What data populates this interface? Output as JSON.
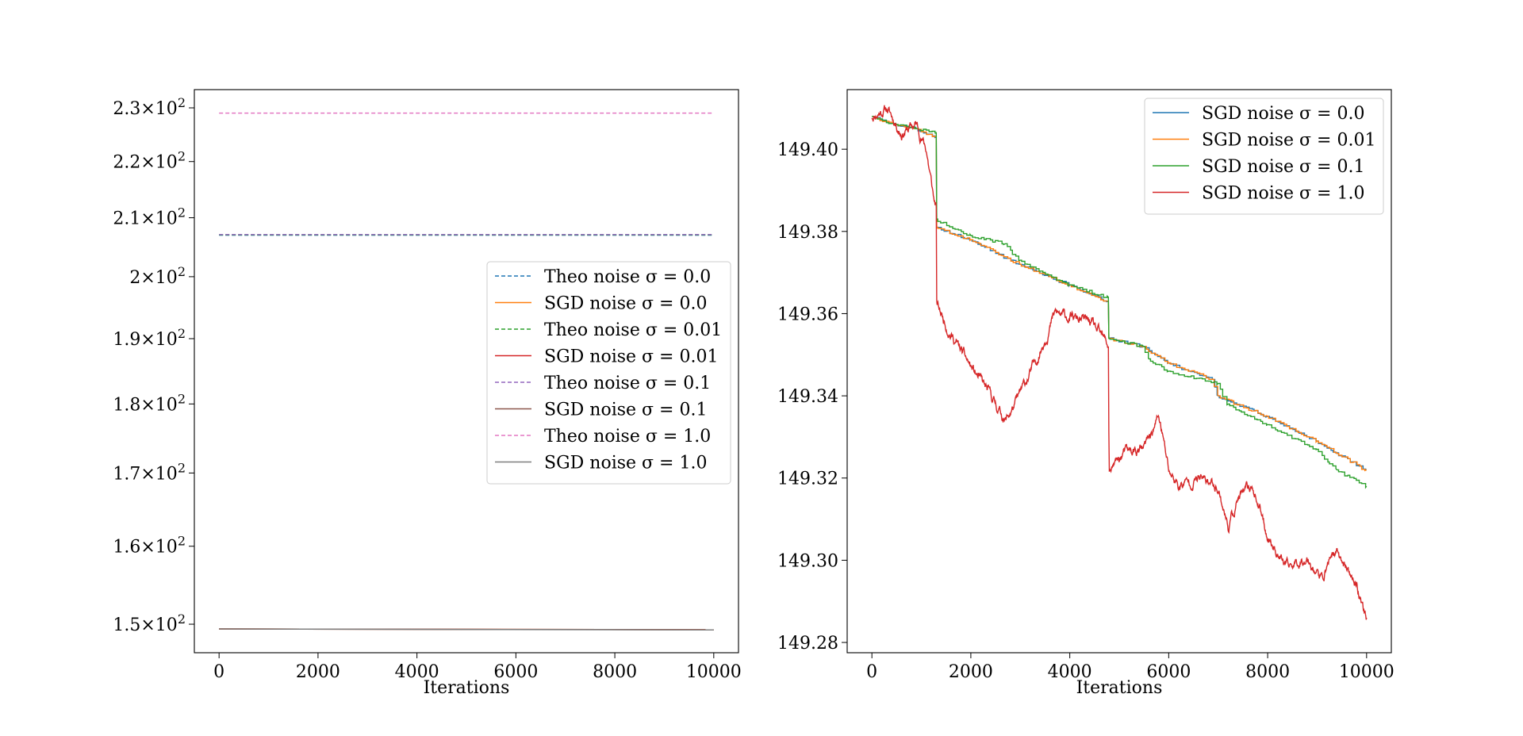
{
  "colors": {
    "c0": "#1f77b4",
    "c1": "#ff7f0e",
    "c2": "#2ca02c",
    "c3": "#d62728",
    "c4": "#9467bd",
    "c5": "#8c564b",
    "c6": "#e377c2",
    "c7": "#7f7f7f"
  },
  "chart_data": [
    {
      "type": "line",
      "xlabel": "Iterations",
      "ylabel": "",
      "xlim": [
        -500,
        10500
      ],
      "ylim": [
        146.5,
        233.5
      ],
      "yscale": "log",
      "xticks": [
        0,
        2000,
        4000,
        6000,
        8000,
        10000
      ],
      "xtick_labels": [
        "0",
        "2000",
        "4000",
        "6000",
        "8000",
        "10000"
      ],
      "yticks": [
        150,
        160,
        170,
        180,
        190,
        200,
        210,
        220,
        230
      ],
      "ytick_labels": [
        {
          "mant": "1.5",
          "exp": "2"
        },
        {
          "mant": "1.6",
          "exp": "2"
        },
        {
          "mant": "1.7",
          "exp": "2"
        },
        {
          "mant": "1.8",
          "exp": "2"
        },
        {
          "mant": "1.9",
          "exp": "2"
        },
        {
          "mant": "2",
          "exp": "2"
        },
        {
          "mant": "2.1",
          "exp": "2"
        },
        {
          "mant": "2.2",
          "exp": "2"
        },
        {
          "mant": "2.3",
          "exp": "2"
        }
      ],
      "legend": "center-right",
      "grid": false,
      "series": [
        {
          "name": "Theo noise σ = 0.0",
          "style": "dashed",
          "color": "c0",
          "x": [
            0,
            10000
          ],
          "y": [
            207.0,
            207.0
          ]
        },
        {
          "name": "SGD noise σ = 0.0",
          "style": "solid",
          "color": "c1",
          "x": [
            0,
            10000
          ],
          "y": [
            149.41,
            149.32
          ]
        },
        {
          "name": "Theo noise σ = 0.01",
          "style": "dashed",
          "color": "c2",
          "x": [
            0,
            10000
          ],
          "y": [
            207.05,
            207.05
          ]
        },
        {
          "name": "SGD noise σ = 0.01",
          "style": "solid",
          "color": "c3",
          "x": [
            0,
            10000
          ],
          "y": [
            149.41,
            149.32
          ]
        },
        {
          "name": "Theo noise σ = 0.1",
          "style": "dashed",
          "color": "c4",
          "x": [
            0,
            10000
          ],
          "y": [
            207.1,
            207.1
          ]
        },
        {
          "name": "SGD noise σ = 0.1",
          "style": "solid",
          "color": "c5",
          "x": [
            0,
            10000
          ],
          "y": [
            149.41,
            149.32
          ]
        },
        {
          "name": "Theo noise σ = 1.0",
          "style": "dashed",
          "color": "c6",
          "x": [
            0,
            10000
          ],
          "y": [
            229.0,
            229.0
          ]
        },
        {
          "name": "SGD noise σ = 1.0",
          "style": "solid",
          "color": "c7",
          "x": [
            0,
            10000
          ],
          "y": [
            149.41,
            149.29
          ]
        }
      ]
    },
    {
      "type": "line",
      "xlabel": "Iterations",
      "ylabel": "",
      "xlim": [
        -500,
        10500
      ],
      "ylim": [
        149.2775,
        149.4145
      ],
      "xticks": [
        0,
        2000,
        4000,
        6000,
        8000,
        10000
      ],
      "xtick_labels": [
        "0",
        "2000",
        "4000",
        "6000",
        "8000",
        "10000"
      ],
      "yticks": [
        149.28,
        149.3,
        149.32,
        149.34,
        149.36,
        149.38,
        149.4
      ],
      "ytick_labels": [
        "149.28",
        "149.30",
        "149.32",
        "149.34",
        "149.36",
        "149.38",
        "149.40"
      ],
      "legend": "top-right",
      "grid": false,
      "series": [
        {
          "name": "SGD noise σ = 0.0",
          "style": "solid",
          "color": "c0",
          "x": [
            0,
            500,
            900,
            1300,
            1310,
            2000,
            3000,
            4000,
            4780,
            4790,
            5500,
            6000,
            6900,
            7000,
            8000,
            9000,
            10000
          ],
          "y": [
            149.408,
            149.406,
            149.405,
            149.403,
            149.381,
            149.378,
            149.372,
            149.367,
            149.363,
            149.354,
            149.352,
            149.348,
            149.344,
            149.34,
            149.335,
            149.329,
            149.322
          ]
        },
        {
          "name": "SGD noise σ = 0.01",
          "style": "solid",
          "color": "c1",
          "x": [
            0,
            500,
            900,
            1300,
            1310,
            2000,
            3000,
            4000,
            4780,
            4790,
            5500,
            6000,
            6900,
            7000,
            8000,
            9000,
            10000
          ],
          "y": [
            149.408,
            149.406,
            149.405,
            149.403,
            149.381,
            149.378,
            149.372,
            149.367,
            149.363,
            149.354,
            149.352,
            149.348,
            149.344,
            149.34,
            149.335,
            149.329,
            149.322
          ]
        },
        {
          "name": "SGD noise σ = 0.1",
          "style": "solid",
          "color": "c2",
          "x": [
            0,
            500,
            900,
            1300,
            1310,
            2000,
            2700,
            3000,
            4000,
            4780,
            4790,
            5500,
            5600,
            6000,
            7000,
            7200,
            8000,
            9000,
            9400,
            10000
          ],
          "y": [
            149.408,
            149.406,
            149.405,
            149.404,
            149.383,
            149.379,
            149.377,
            149.373,
            149.367,
            149.364,
            149.354,
            149.352,
            149.349,
            149.346,
            149.343,
            149.338,
            149.333,
            149.327,
            149.322,
            149.318
          ]
        },
        {
          "name": "SGD noise σ = 1.0",
          "style": "solid",
          "color": "c3",
          "x": [
            0,
            300,
            600,
            900,
            1100,
            1250,
            1300,
            1310,
            1600,
            2000,
            2400,
            2700,
            2900,
            3300,
            3700,
            4000,
            4400,
            4780,
            4790,
            4800,
            5100,
            5500,
            5800,
            6000,
            6200,
            6600,
            7000,
            7200,
            7400,
            7700,
            8000,
            8400,
            8800,
            9100,
            9300,
            9500,
            9800,
            10000
          ],
          "y": [
            149.408,
            149.41,
            149.404,
            149.406,
            149.4,
            149.388,
            149.386,
            149.362,
            149.355,
            149.347,
            149.34,
            149.334,
            149.338,
            149.348,
            149.36,
            149.359,
            149.358,
            149.352,
            149.331,
            149.322,
            149.326,
            149.327,
            149.335,
            149.322,
            149.318,
            149.32,
            149.318,
            149.308,
            149.315,
            149.318,
            149.306,
            149.298,
            149.301,
            149.295,
            149.302,
            149.3,
            149.294,
            149.286
          ]
        }
      ]
    }
  ]
}
